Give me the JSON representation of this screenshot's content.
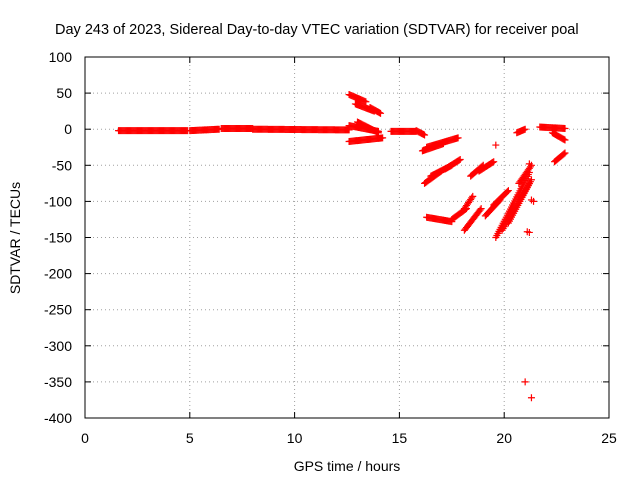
{
  "chart_data": {
    "type": "scatter",
    "title": "Day 243 of 2023, Sidereal Day-to-day VTEC variation (SDTVAR) for receiver poal",
    "xlabel": "GPS time / hours",
    "ylabel": "SDTVAR / TECUs",
    "xlim": [
      0,
      25
    ],
    "ylim": [
      -400,
      100
    ],
    "x_ticks": [
      "0",
      "5",
      "10",
      "15",
      "20",
      "25"
    ],
    "y_ticks": [
      "100",
      "50",
      "0",
      "-50",
      "-100",
      "-150",
      "-200",
      "-250",
      "-300",
      "-350",
      "-400"
    ],
    "grid": true,
    "marker": "+",
    "series": [
      {
        "name": "SDTVAR",
        "color": "#ff0000",
        "segments": [
          {
            "x0": 1.6,
            "x1": 4.9,
            "y0": -2,
            "y1": -2
          },
          {
            "x0": 5.0,
            "x1": 6.4,
            "y0": -2,
            "y1": 0
          },
          {
            "x0": 6.5,
            "x1": 8.0,
            "y0": 1,
            "y1": 1
          },
          {
            "x0": 8.0,
            "x1": 12.6,
            "y0": 0,
            "y1": -1
          },
          {
            "x0": 12.6,
            "x1": 13.4,
            "y0": 48,
            "y1": 38
          },
          {
            "x0": 12.9,
            "x1": 13.8,
            "y0": 35,
            "y1": 25
          },
          {
            "x0": 13.6,
            "x1": 14.1,
            "y0": 30,
            "y1": 22
          },
          {
            "x0": 12.6,
            "x1": 14.0,
            "y0": 5,
            "y1": -3
          },
          {
            "x0": 12.6,
            "x1": 14.2,
            "y0": -17,
            "y1": -12
          },
          {
            "x0": 13.0,
            "x1": 14.0,
            "y0": 10,
            "y1": -5
          },
          {
            "x0": 14.6,
            "x1": 15.8,
            "y0": -3,
            "y1": -3
          },
          {
            "x0": 15.8,
            "x1": 16.2,
            "y0": -2,
            "y1": -8
          },
          {
            "x0": 16.1,
            "x1": 17.1,
            "y0": -30,
            "y1": -20
          },
          {
            "x0": 16.3,
            "x1": 17.8,
            "y0": -25,
            "y1": -12
          },
          {
            "x0": 16.2,
            "x1": 17.0,
            "y0": -75,
            "y1": -58
          },
          {
            "x0": 16.5,
            "x1": 17.5,
            "y0": -65,
            "y1": -50
          },
          {
            "x0": 17.2,
            "x1": 17.9,
            "y0": -55,
            "y1": -42
          },
          {
            "x0": 16.3,
            "x1": 17.5,
            "y0": -122,
            "y1": -128
          },
          {
            "x0": 17.5,
            "x1": 18.2,
            "y0": -125,
            "y1": -110
          },
          {
            "x0": 18.1,
            "x1": 18.5,
            "y0": -110,
            "y1": -93
          },
          {
            "x0": 18.1,
            "x1": 18.9,
            "y0": -140,
            "y1": -110
          },
          {
            "x0": 18.4,
            "x1": 19.0,
            "y0": -65,
            "y1": -50
          },
          {
            "x0": 18.8,
            "x1": 19.5,
            "y0": -58,
            "y1": -45
          },
          {
            "x0": 19.1,
            "x1": 19.8,
            "y0": -120,
            "y1": -98
          },
          {
            "x0": 19.5,
            "x1": 20.2,
            "y0": -105,
            "y1": -85
          },
          {
            "x0": 19.6,
            "x1": 21.2,
            "y0": -150,
            "y1": -60
          },
          {
            "x0": 19.9,
            "x1": 21.2,
            "y0": -140,
            "y1": -75
          },
          {
            "x0": 20.2,
            "x1": 21.3,
            "y0": -130,
            "y1": -70
          },
          {
            "x0": 20.7,
            "x1": 21.3,
            "y0": -75,
            "y1": -50
          },
          {
            "x0": 21.7,
            "x1": 22.9,
            "y0": 3,
            "y1": 1
          },
          {
            "x0": 22.3,
            "x1": 22.9,
            "y0": -5,
            "y1": -15
          },
          {
            "x0": 22.4,
            "x1": 22.9,
            "y0": -45,
            "y1": -33
          },
          {
            "x0": 20.6,
            "x1": 21.0,
            "y0": -5,
            "y1": 0
          }
        ],
        "points": [
          {
            "x": 19.6,
            "y": -22
          },
          {
            "x": 21.0,
            "y": -350
          },
          {
            "x": 21.3,
            "y": -372
          },
          {
            "x": 21.2,
            "y": -143
          },
          {
            "x": 21.3,
            "y": -98
          },
          {
            "x": 21.2,
            "y": -48
          },
          {
            "x": 21.4,
            "y": -100
          },
          {
            "x": 21.1,
            "y": -142
          }
        ]
      }
    ]
  }
}
